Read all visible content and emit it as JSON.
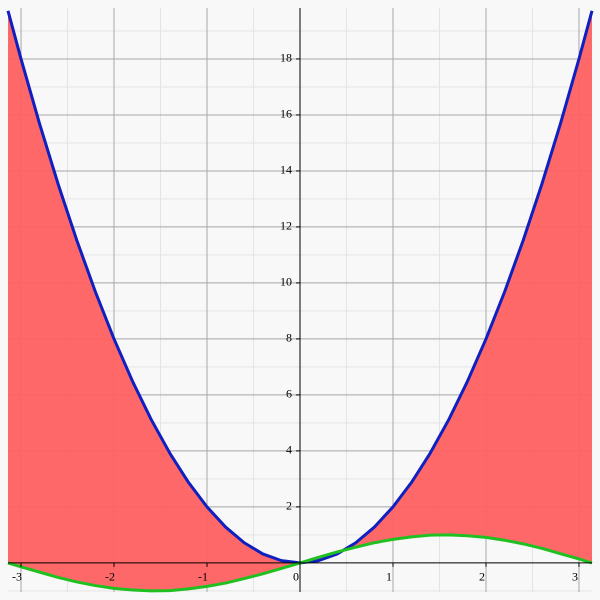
{
  "chart_data": {
    "type": "area_between",
    "x": [
      -3.14,
      -3.0,
      -2.8,
      -2.6,
      -2.4,
      -2.2,
      -2.0,
      -1.8,
      -1.6,
      -1.4,
      -1.2,
      -1.0,
      -0.8,
      -0.6,
      -0.4,
      -0.2,
      0,
      0.2,
      0.4,
      0.6,
      0.8,
      1.0,
      1.2,
      1.4,
      1.6,
      1.8,
      2.0,
      2.2,
      2.4,
      2.6,
      2.8,
      3.0,
      3.14
    ],
    "series": [
      {
        "color": "#1020c0",
        "values": [
          19.72,
          18,
          15.68,
          13.52,
          11.52,
          9.68,
          8,
          6.48,
          5.12,
          3.92,
          2.88,
          2,
          1.28,
          0.72,
          0.32,
          0.08,
          0,
          0.08,
          0.32,
          0.72,
          1.28,
          2,
          2.88,
          3.92,
          5.12,
          6.48,
          8,
          9.68,
          11.52,
          13.52,
          15.68,
          18,
          19.72
        ]
      },
      {
        "color": "#20c020",
        "values": [
          0,
          -0.14,
          -0.33,
          -0.52,
          -0.68,
          -0.81,
          -0.91,
          -0.97,
          -1.0,
          -0.99,
          -0.93,
          -0.84,
          -0.72,
          -0.56,
          -0.39,
          -0.2,
          0,
          0.2,
          0.39,
          0.56,
          0.72,
          0.84,
          0.93,
          0.99,
          1.0,
          0.97,
          0.91,
          0.81,
          0.68,
          0.52,
          0.33,
          0.14,
          0
        ]
      }
    ],
    "fill_color": "#ff6060",
    "xlim": [
      -3.14,
      3.14
    ],
    "ylim": [
      -1.04,
      19.82
    ],
    "xticks": [
      -3,
      -2,
      -1,
      0,
      1,
      2,
      3
    ],
    "yticks": [
      2,
      4,
      6,
      8,
      10,
      12,
      14,
      16,
      18
    ],
    "grid": true,
    "minor_grid": true
  }
}
